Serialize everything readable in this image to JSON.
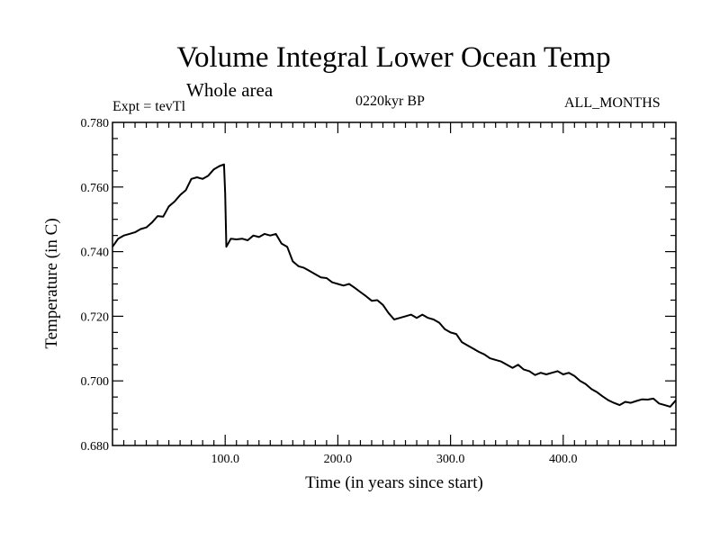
{
  "header": {
    "title": "Volume Integral Lower Ocean Temp",
    "subtitle": "Whole area",
    "experiment": "Expt = tevTl",
    "period": "0220kyr BP",
    "months": "ALL_MONTHS"
  },
  "chart_data": {
    "type": "line",
    "title": "Volume Integral Lower Ocean Temp",
    "subtitle": "Whole area",
    "xlabel": "Time (in years since start)",
    "ylabel": "Temperature (in C)",
    "xlim": [
      0,
      500
    ],
    "ylim": [
      0.68,
      0.78
    ],
    "xticks": [
      100,
      200,
      300,
      400
    ],
    "xtick_labels": [
      "100.0",
      "200.0",
      "300.0",
      "400.0"
    ],
    "yticks": [
      0.68,
      0.7,
      0.72,
      0.74,
      0.76,
      0.78
    ],
    "ytick_labels": [
      "0.680",
      "0.700",
      "0.720",
      "0.740",
      "0.760",
      "0.780"
    ],
    "grid": false,
    "line_color": "#000000",
    "series": [
      {
        "x": [
          0,
          5,
          10,
          15,
          20,
          25,
          30,
          35,
          40,
          45,
          50,
          55,
          60,
          65,
          70,
          75,
          80,
          85,
          90,
          95,
          99,
          100,
          101,
          105,
          110,
          115,
          120,
          125,
          130,
          135,
          140,
          145,
          150,
          155,
          160,
          165,
          170,
          175,
          180,
          185,
          190,
          195,
          200,
          205,
          210,
          215,
          220,
          225,
          230,
          235,
          240,
          245,
          250,
          255,
          260,
          265,
          270,
          275,
          280,
          285,
          290,
          295,
          300,
          305,
          310,
          315,
          320,
          325,
          330,
          335,
          340,
          345,
          350,
          355,
          360,
          365,
          370,
          375,
          380,
          385,
          390,
          395,
          400,
          405,
          410,
          415,
          420,
          425,
          430,
          435,
          440,
          445,
          450,
          455,
          460,
          465,
          470,
          475,
          480,
          485,
          490,
          495,
          500
        ],
        "y": [
          0.7415,
          0.744,
          0.745,
          0.7455,
          0.746,
          0.747,
          0.7475,
          0.749,
          0.751,
          0.7508,
          0.754,
          0.7555,
          0.7575,
          0.759,
          0.7625,
          0.763,
          0.7625,
          0.7635,
          0.7655,
          0.7665,
          0.767,
          0.758,
          0.7415,
          0.744,
          0.7438,
          0.744,
          0.7435,
          0.745,
          0.7445,
          0.7455,
          0.745,
          0.7455,
          0.7425,
          0.7415,
          0.737,
          0.7355,
          0.735,
          0.734,
          0.733,
          0.732,
          0.7318,
          0.7305,
          0.73,
          0.7295,
          0.73,
          0.7288,
          0.7275,
          0.7262,
          0.7248,
          0.725,
          0.7235,
          0.721,
          0.719,
          0.7195,
          0.72,
          0.7205,
          0.7195,
          0.7205,
          0.7195,
          0.719,
          0.718,
          0.716,
          0.715,
          0.7145,
          0.712,
          0.711,
          0.71,
          0.709,
          0.7082,
          0.707,
          0.7065,
          0.706,
          0.705,
          0.704,
          0.705,
          0.7035,
          0.703,
          0.7018,
          0.7025,
          0.702,
          0.7025,
          0.703,
          0.702,
          0.7025,
          0.7015,
          0.7,
          0.699,
          0.6975,
          0.6965,
          0.6952,
          0.694,
          0.6932,
          0.6925,
          0.6935,
          0.6932,
          0.6938,
          0.6943,
          0.6942,
          0.6945,
          0.693,
          0.6925,
          0.692,
          0.694
        ]
      }
    ]
  }
}
